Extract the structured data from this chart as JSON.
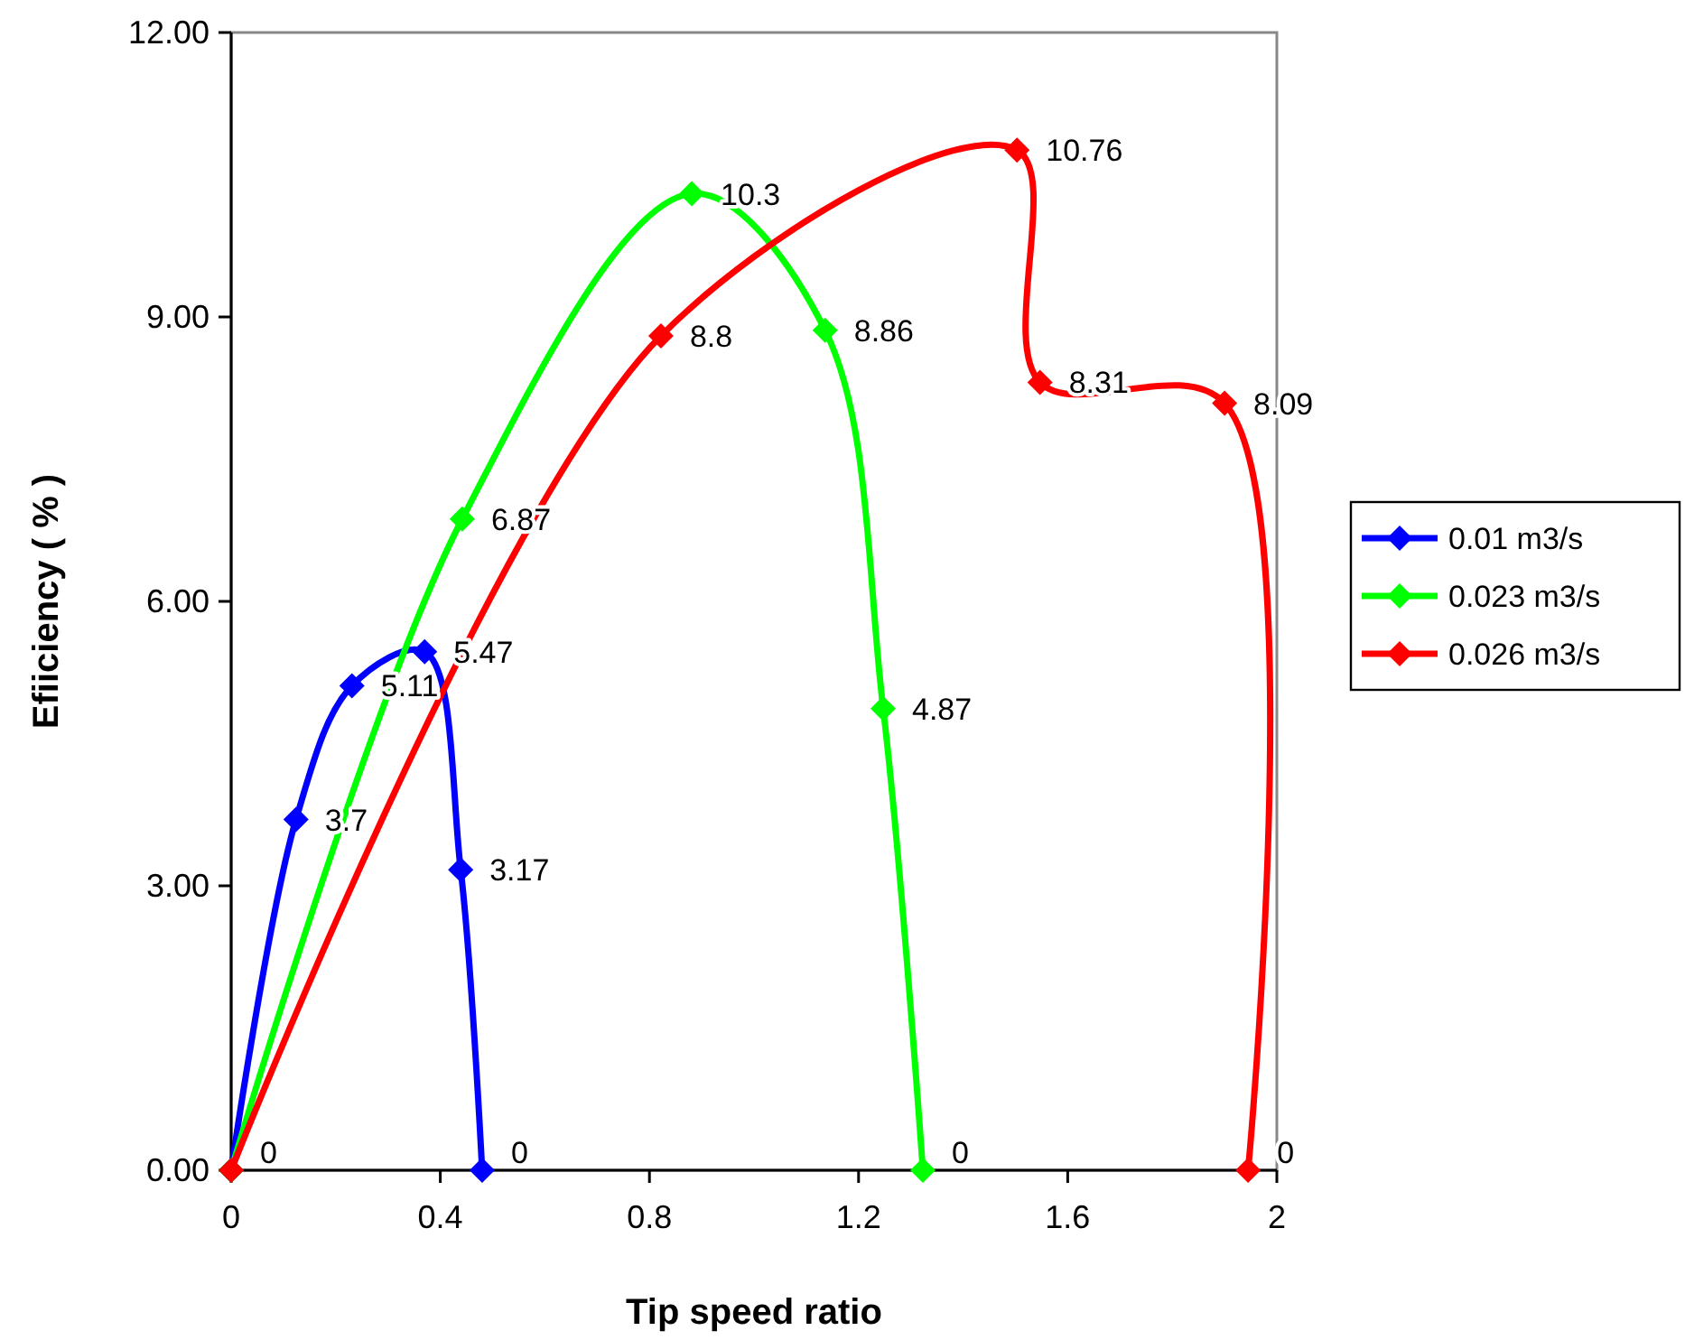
{
  "chart_data": {
    "type": "line",
    "xlabel": "Tip speed ratio",
    "ylabel": "Efiiciency ( % )",
    "xlim": [
      0,
      2
    ],
    "xticks": [
      0,
      0.4,
      0.8,
      1.2,
      1.6,
      2
    ],
    "ylim": [
      0,
      12
    ],
    "yticks": [
      {
        "value": 0,
        "label": "0.00"
      },
      {
        "value": 3,
        "label": "3.00"
      },
      {
        "value": 6,
        "label": "6.00"
      },
      {
        "value": 9,
        "label": "9.00"
      },
      {
        "value": 12,
        "label": "12.00"
      }
    ],
    "series": [
      {
        "name": "0.01 m3/s",
        "color": "#0000ff",
        "x": [
          0,
          0.124,
          0.231,
          0.37,
          0.439,
          0.48
        ],
        "values": [
          0,
          3.7,
          5.11,
          5.47,
          3.17,
          0
        ],
        "value_labels": [
          "0",
          "3.7",
          "5.11",
          "5.47",
          "3.17",
          "0"
        ]
      },
      {
        "name": "0.023 m3/s",
        "color": "#00ff00",
        "x": [
          0,
          0.442,
          0.881,
          1.136,
          1.247,
          1.323
        ],
        "values": [
          0,
          6.87,
          10.3,
          8.86,
          4.87,
          0
        ],
        "value_labels": [
          null,
          "6.87",
          "10.3",
          "8.86",
          "4.87",
          "0"
        ]
      },
      {
        "name": "0.026 m3/s",
        "color": "#ff0000",
        "x": [
          0,
          0.822,
          1.503,
          1.547,
          1.9,
          1.945
        ],
        "values": [
          0,
          8.8,
          10.76,
          8.31,
          8.09,
          0
        ],
        "value_labels": [
          null,
          "8.8",
          "10.76",
          "8.31",
          "8.09",
          "0"
        ]
      }
    ],
    "marker": "diamond",
    "line_style": "solid",
    "legend": "right",
    "grid": false
  }
}
